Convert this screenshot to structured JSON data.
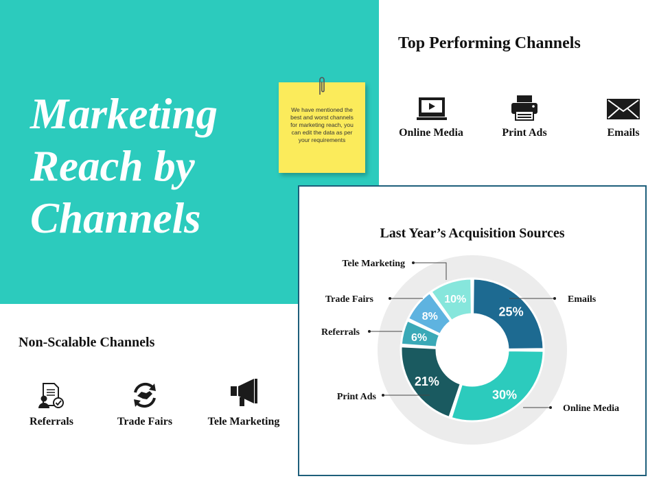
{
  "hero": {
    "title_lines": [
      "Marketing",
      "Reach by",
      "Channels"
    ]
  },
  "sticky_note": {
    "text": "We have mentioned the best and worst channels for marketing reach, you can edit the data as per your requirements"
  },
  "top_channels": {
    "title": "Top Performing Channels",
    "items": [
      {
        "label": "Online Media",
        "icon": "laptop-icon"
      },
      {
        "label": "Print Ads",
        "icon": "printer-icon"
      },
      {
        "label": "Emails",
        "icon": "envelope-icon"
      }
    ]
  },
  "non_scalable": {
    "title": "Non-Scalable Channels",
    "items": [
      {
        "label": "Referrals",
        "icon": "referral-document-icon"
      },
      {
        "label": "Trade Fairs",
        "icon": "handshake-icon"
      },
      {
        "label": "Tele Marketing",
        "icon": "megaphone-icon"
      }
    ]
  },
  "chart_data": {
    "type": "pie",
    "subtype": "donut",
    "title": "Last Year’s Acquisition Sources",
    "categories": [
      "Emails",
      "Online Media",
      "Print Ads",
      "Referrals",
      "Trade Fairs",
      "Tele Marketing"
    ],
    "values": [
      25,
      30,
      21,
      6,
      8,
      10
    ],
    "data_labels": [
      "25%",
      "30%",
      "21%",
      "6%",
      "8%",
      "10%"
    ],
    "colors": [
      "#1d6a91",
      "#2ccbbd",
      "#1a5a60",
      "#3aa9b7",
      "#5eb3e0",
      "#86e6dc"
    ],
    "legend": "callout labels"
  }
}
